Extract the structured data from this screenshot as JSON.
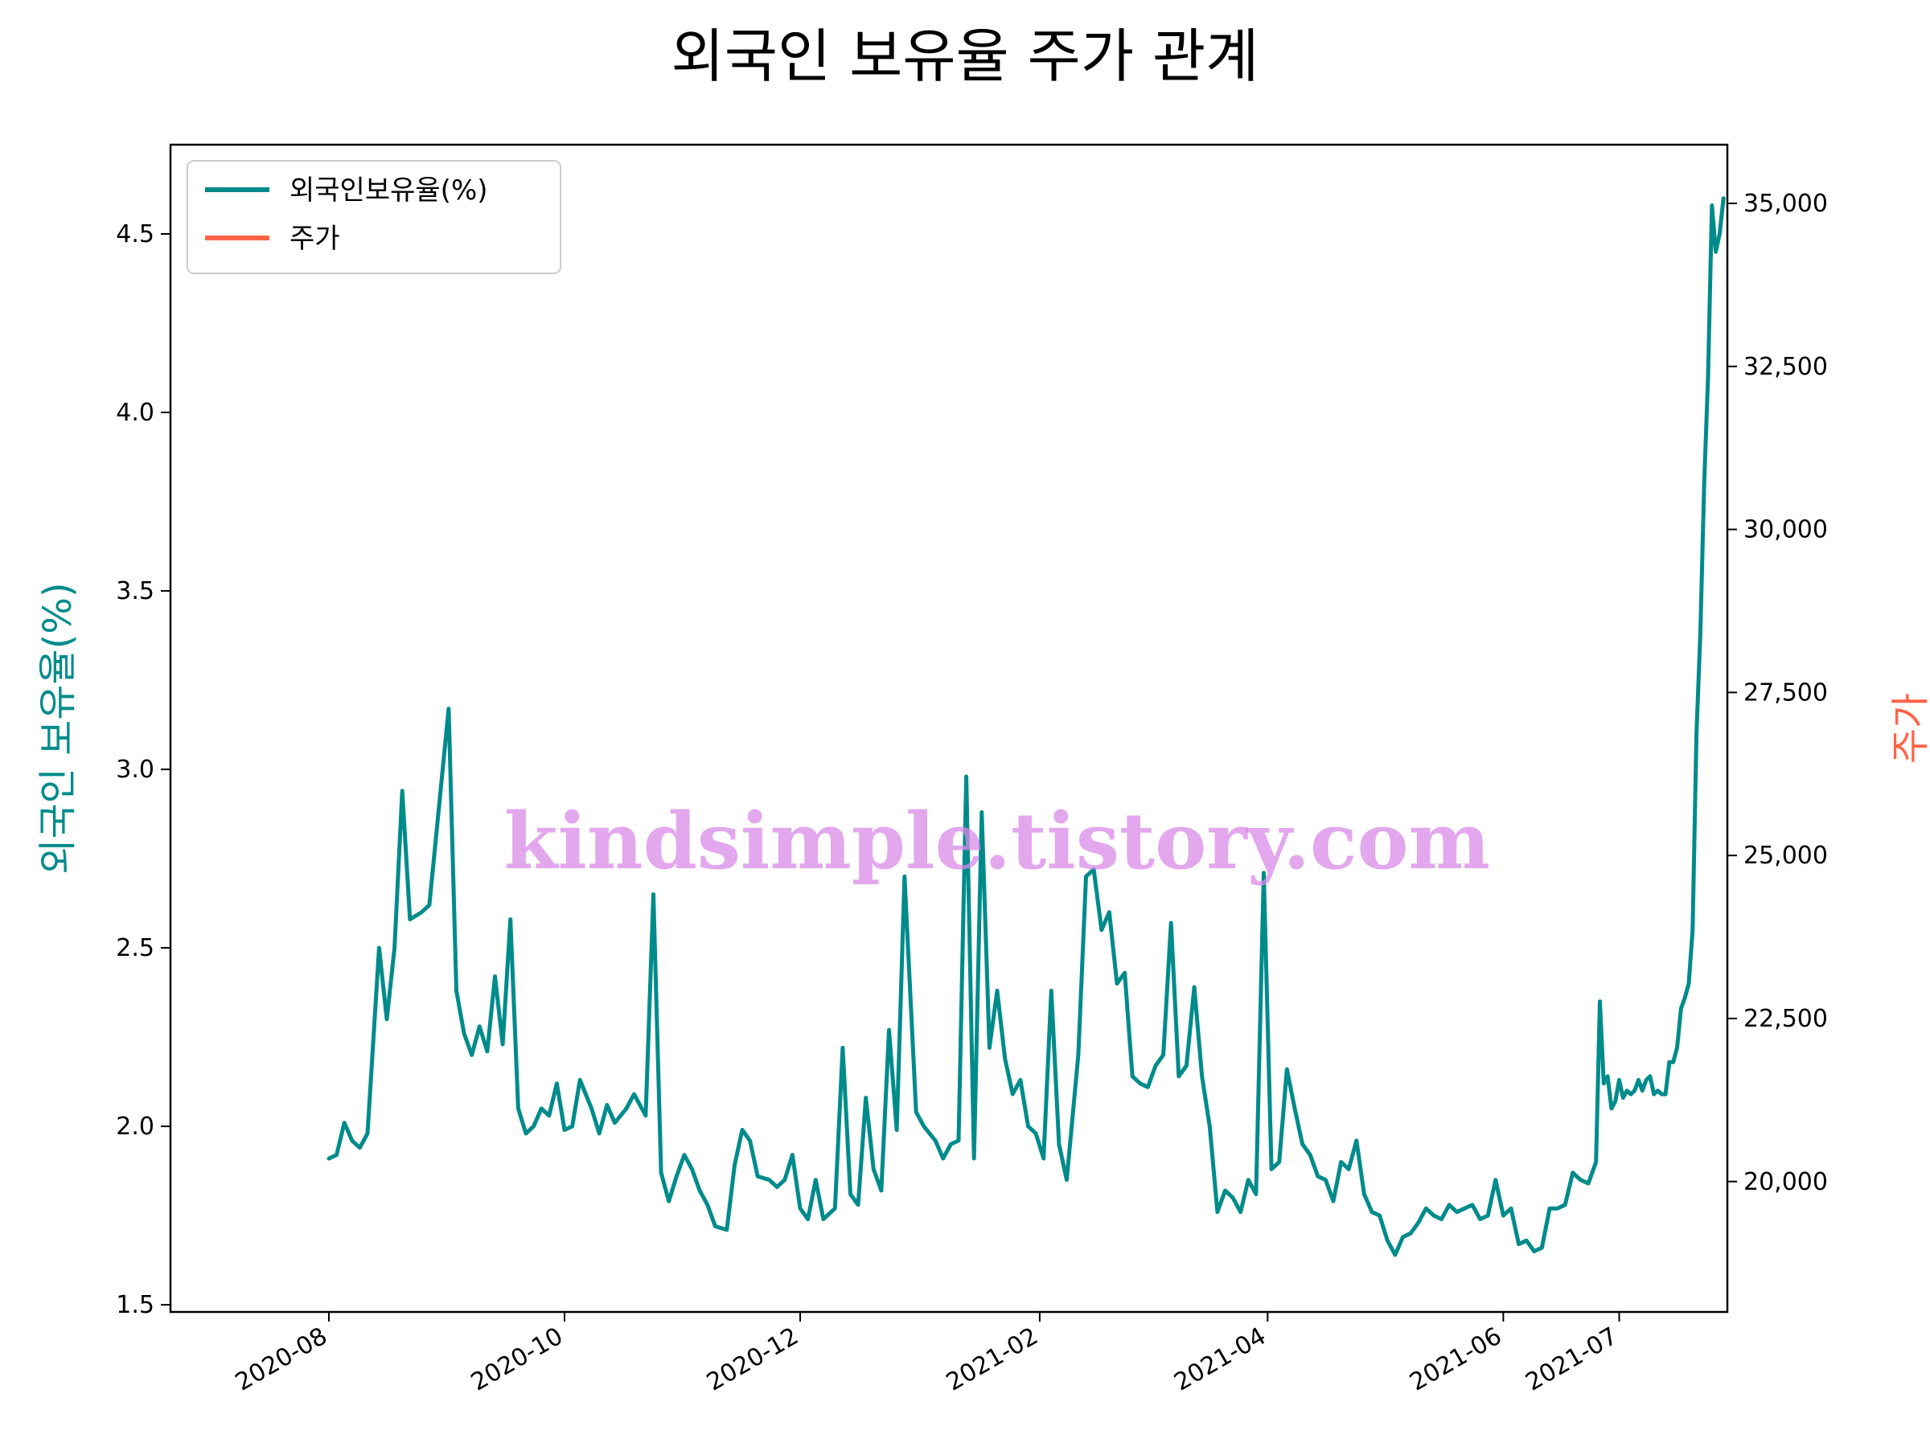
{
  "chart_data": {
    "type": "line",
    "title": "외국인 보유율 주가 관계",
    "ylabel_left": "외국인 보유율(%)",
    "ylabel_right": "주가",
    "ylim_left": [
      1.48,
      4.75
    ],
    "ylim_right": [
      18000,
      35900
    ],
    "xlim": [
      "2020-06-23",
      "2021-07-31"
    ],
    "x_ticks": [
      {
        "date": "2020-08-03",
        "label": "2020-08"
      },
      {
        "date": "2020-10-03",
        "label": "2020-10"
      },
      {
        "date": "2020-12-03",
        "label": "2020-12"
      },
      {
        "date": "2021-02-03",
        "label": "2021-02"
      },
      {
        "date": "2021-04-03",
        "label": "2021-04"
      },
      {
        "date": "2021-06-03",
        "label": "2021-06"
      },
      {
        "date": "2021-07-03",
        "label": "2021-07"
      }
    ],
    "y_ticks_left": [
      {
        "value": 1.5,
        "label": "1.5"
      },
      {
        "value": 2.0,
        "label": "2.0"
      },
      {
        "value": 2.5,
        "label": "2.5"
      },
      {
        "value": 3.0,
        "label": "3.0"
      },
      {
        "value": 3.5,
        "label": "3.5"
      },
      {
        "value": 4.0,
        "label": "4.0"
      },
      {
        "value": 4.5,
        "label": "4.5"
      }
    ],
    "y_ticks_right": [
      {
        "value": 20000,
        "label": "20,000"
      },
      {
        "value": 22500,
        "label": "22,500"
      },
      {
        "value": 25000,
        "label": "25,000"
      },
      {
        "value": 27500,
        "label": "27,500"
      },
      {
        "value": 30000,
        "label": "30,000"
      },
      {
        "value": 32500,
        "label": "32,500"
      },
      {
        "value": 35000,
        "label": "35,000"
      }
    ],
    "legend_position": "top-left",
    "legend": [
      "외국인보유율(%)",
      "주가"
    ],
    "series": [
      {
        "name": "외국인보유율(%)",
        "axis": "left",
        "color": "#008b8b",
        "points": [
          [
            "2020-08-03",
            1.91
          ],
          [
            "2020-08-05",
            1.92
          ],
          [
            "2020-08-07",
            2.01
          ],
          [
            "2020-08-09",
            1.96
          ],
          [
            "2020-08-11",
            1.94
          ],
          [
            "2020-08-13",
            1.98
          ],
          [
            "2020-08-16",
            2.5
          ],
          [
            "2020-08-18",
            2.3
          ],
          [
            "2020-08-20",
            2.5
          ],
          [
            "2020-08-22",
            2.94
          ],
          [
            "2020-08-24",
            2.58
          ],
          [
            "2020-08-27",
            2.6
          ],
          [
            "2020-08-29",
            2.62
          ],
          [
            "2020-09-01",
            2.95
          ],
          [
            "2020-09-03",
            3.17
          ],
          [
            "2020-09-05",
            2.38
          ],
          [
            "2020-09-07",
            2.26
          ],
          [
            "2020-09-09",
            2.2
          ],
          [
            "2020-09-11",
            2.28
          ],
          [
            "2020-09-13",
            2.21
          ],
          [
            "2020-09-15",
            2.42
          ],
          [
            "2020-09-17",
            2.23
          ],
          [
            "2020-09-19",
            2.58
          ],
          [
            "2020-09-21",
            2.05
          ],
          [
            "2020-09-23",
            1.98
          ],
          [
            "2020-09-25",
            2.0
          ],
          [
            "2020-09-27",
            2.05
          ],
          [
            "2020-09-29",
            2.03
          ],
          [
            "2020-10-01",
            2.12
          ],
          [
            "2020-10-03",
            1.99
          ],
          [
            "2020-10-05",
            2.0
          ],
          [
            "2020-10-07",
            2.13
          ],
          [
            "2020-10-10",
            2.05
          ],
          [
            "2020-10-12",
            1.98
          ],
          [
            "2020-10-14",
            2.06
          ],
          [
            "2020-10-16",
            2.01
          ],
          [
            "2020-10-19",
            2.05
          ],
          [
            "2020-10-21",
            2.09
          ],
          [
            "2020-10-24",
            2.03
          ],
          [
            "2020-10-26",
            2.65
          ],
          [
            "2020-10-28",
            1.87
          ],
          [
            "2020-10-30",
            1.79
          ],
          [
            "2020-11-01",
            1.86
          ],
          [
            "2020-11-03",
            1.92
          ],
          [
            "2020-11-05",
            1.88
          ],
          [
            "2020-11-07",
            1.82
          ],
          [
            "2020-11-09",
            1.78
          ],
          [
            "2020-11-11",
            1.72
          ],
          [
            "2020-11-14",
            1.71
          ],
          [
            "2020-11-16",
            1.89
          ],
          [
            "2020-11-18",
            1.99
          ],
          [
            "2020-11-20",
            1.96
          ],
          [
            "2020-11-22",
            1.86
          ],
          [
            "2020-11-25",
            1.85
          ],
          [
            "2020-11-27",
            1.83
          ],
          [
            "2020-11-29",
            1.85
          ],
          [
            "2020-12-01",
            1.92
          ],
          [
            "2020-12-03",
            1.77
          ],
          [
            "2020-12-05",
            1.74
          ],
          [
            "2020-12-07",
            1.85
          ],
          [
            "2020-12-09",
            1.74
          ],
          [
            "2020-12-12",
            1.77
          ],
          [
            "2020-12-14",
            2.22
          ],
          [
            "2020-12-16",
            1.81
          ],
          [
            "2020-12-18",
            1.78
          ],
          [
            "2020-12-20",
            2.08
          ],
          [
            "2020-12-22",
            1.88
          ],
          [
            "2020-12-24",
            1.82
          ],
          [
            "2020-12-26",
            2.27
          ],
          [
            "2020-12-28",
            1.99
          ],
          [
            "2020-12-30",
            2.7
          ],
          [
            "2021-01-02",
            2.04
          ],
          [
            "2021-01-04",
            2.0
          ],
          [
            "2021-01-07",
            1.96
          ],
          [
            "2021-01-09",
            1.91
          ],
          [
            "2021-01-11",
            1.95
          ],
          [
            "2021-01-13",
            1.96
          ],
          [
            "2021-01-15",
            2.98
          ],
          [
            "2021-01-17",
            1.91
          ],
          [
            "2021-01-19",
            2.88
          ],
          [
            "2021-01-21",
            2.22
          ],
          [
            "2021-01-23",
            2.38
          ],
          [
            "2021-01-25",
            2.19
          ],
          [
            "2021-01-27",
            2.09
          ],
          [
            "2021-01-29",
            2.13
          ],
          [
            "2021-01-31",
            2.0
          ],
          [
            "2021-02-02",
            1.98
          ],
          [
            "2021-02-04",
            1.91
          ],
          [
            "2021-02-06",
            2.38
          ],
          [
            "2021-02-08",
            1.95
          ],
          [
            "2021-02-10",
            1.85
          ],
          [
            "2021-02-13",
            2.2
          ],
          [
            "2021-02-15",
            2.7
          ],
          [
            "2021-02-17",
            2.72
          ],
          [
            "2021-02-19",
            2.55
          ],
          [
            "2021-02-21",
            2.6
          ],
          [
            "2021-02-23",
            2.4
          ],
          [
            "2021-02-25",
            2.43
          ],
          [
            "2021-02-27",
            2.14
          ],
          [
            "2021-03-01",
            2.12
          ],
          [
            "2021-03-03",
            2.11
          ],
          [
            "2021-03-05",
            2.17
          ],
          [
            "2021-03-07",
            2.2
          ],
          [
            "2021-03-09",
            2.57
          ],
          [
            "2021-03-11",
            2.14
          ],
          [
            "2021-03-13",
            2.17
          ],
          [
            "2021-03-15",
            2.39
          ],
          [
            "2021-03-17",
            2.14
          ],
          [
            "2021-03-19",
            2.0
          ],
          [
            "2021-03-21",
            1.76
          ],
          [
            "2021-03-23",
            1.82
          ],
          [
            "2021-03-25",
            1.8
          ],
          [
            "2021-03-27",
            1.76
          ],
          [
            "2021-03-29",
            1.85
          ],
          [
            "2021-03-31",
            1.81
          ],
          [
            "2021-04-02",
            2.71
          ],
          [
            "2021-04-04",
            1.88
          ],
          [
            "2021-04-06",
            1.9
          ],
          [
            "2021-04-08",
            2.16
          ],
          [
            "2021-04-10",
            2.05
          ],
          [
            "2021-04-12",
            1.95
          ],
          [
            "2021-04-14",
            1.92
          ],
          [
            "2021-04-16",
            1.86
          ],
          [
            "2021-04-18",
            1.85
          ],
          [
            "2021-04-20",
            1.79
          ],
          [
            "2021-04-22",
            1.9
          ],
          [
            "2021-04-24",
            1.88
          ],
          [
            "2021-04-26",
            1.96
          ],
          [
            "2021-04-28",
            1.81
          ],
          [
            "2021-04-30",
            1.76
          ],
          [
            "2021-05-02",
            1.75
          ],
          [
            "2021-05-04",
            1.68
          ],
          [
            "2021-05-06",
            1.64
          ],
          [
            "2021-05-08",
            1.69
          ],
          [
            "2021-05-10",
            1.7
          ],
          [
            "2021-05-12",
            1.73
          ],
          [
            "2021-05-14",
            1.77
          ],
          [
            "2021-05-16",
            1.75
          ],
          [
            "2021-05-18",
            1.74
          ],
          [
            "2021-05-20",
            1.78
          ],
          [
            "2021-05-22",
            1.76
          ],
          [
            "2021-05-24",
            1.77
          ],
          [
            "2021-05-26",
            1.78
          ],
          [
            "2021-05-28",
            1.74
          ],
          [
            "2021-05-30",
            1.75
          ],
          [
            "2021-06-01",
            1.85
          ],
          [
            "2021-06-03",
            1.75
          ],
          [
            "2021-06-05",
            1.77
          ],
          [
            "2021-06-07",
            1.67
          ],
          [
            "2021-06-09",
            1.68
          ],
          [
            "2021-06-11",
            1.65
          ],
          [
            "2021-06-13",
            1.66
          ],
          [
            "2021-06-15",
            1.77
          ],
          [
            "2021-06-17",
            1.77
          ],
          [
            "2021-06-19",
            1.78
          ],
          [
            "2021-06-21",
            1.87
          ],
          [
            "2021-06-23",
            1.85
          ],
          [
            "2021-06-25",
            1.84
          ],
          [
            "2021-06-27",
            1.9
          ],
          [
            "2021-06-28",
            2.35
          ],
          [
            "2021-06-29",
            2.12
          ],
          [
            "2021-06-30",
            2.14
          ],
          [
            "2021-07-01",
            2.05
          ],
          [
            "2021-07-02",
            2.07
          ],
          [
            "2021-07-03",
            2.13
          ],
          [
            "2021-07-04",
            2.08
          ],
          [
            "2021-07-05",
            2.1
          ],
          [
            "2021-07-06",
            2.09
          ],
          [
            "2021-07-07",
            2.1
          ],
          [
            "2021-07-08",
            2.13
          ],
          [
            "2021-07-09",
            2.1
          ],
          [
            "2021-07-10",
            2.13
          ],
          [
            "2021-07-11",
            2.14
          ],
          [
            "2021-07-12",
            2.09
          ],
          [
            "2021-07-13",
            2.1
          ],
          [
            "2021-07-14",
            2.09
          ],
          [
            "2021-07-15",
            2.09
          ],
          [
            "2021-07-16",
            2.18
          ],
          [
            "2021-07-17",
            2.18
          ],
          [
            "2021-07-18",
            2.22
          ],
          [
            "2021-07-19",
            2.33
          ],
          [
            "2021-07-20",
            2.36
          ],
          [
            "2021-07-21",
            2.4
          ],
          [
            "2021-07-22",
            2.55
          ],
          [
            "2021-07-23",
            3.1
          ],
          [
            "2021-07-24",
            3.38
          ],
          [
            "2021-07-25",
            3.8
          ],
          [
            "2021-07-26",
            4.1
          ],
          [
            "2021-07-27",
            4.58
          ],
          [
            "2021-07-28",
            4.45
          ],
          [
            "2021-07-29",
            4.5
          ],
          [
            "2021-07-30",
            4.6
          ]
        ]
      }
    ]
  }
}
